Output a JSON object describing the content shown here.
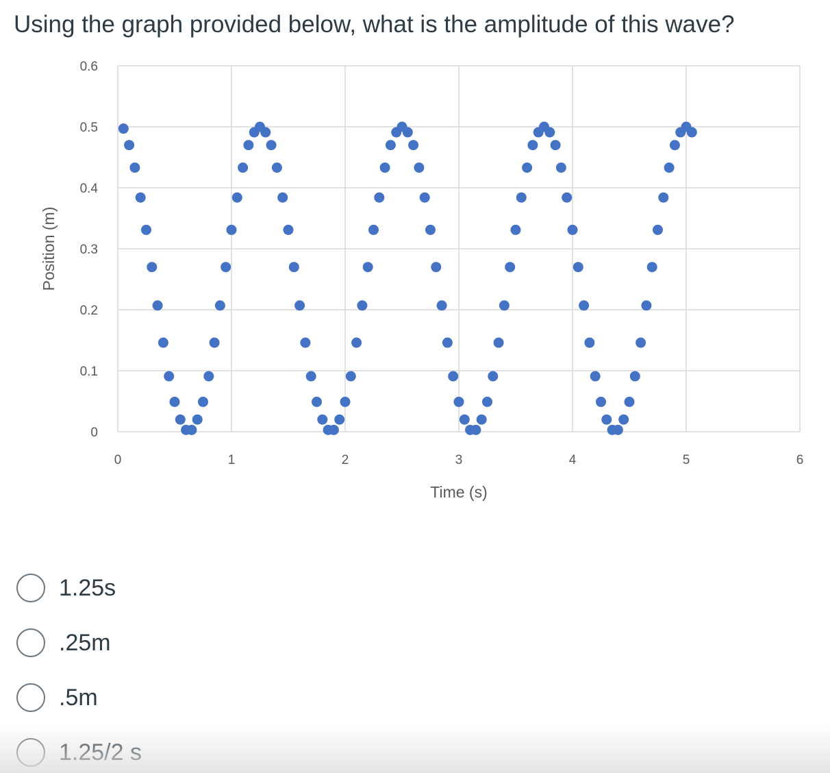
{
  "question": {
    "text": "Using the graph provided below, what is the amplitude of this wave?"
  },
  "answers": [
    {
      "label": "1.25s",
      "selected": false
    },
    {
      "label": ".25m",
      "selected": false
    },
    {
      "label": ".5m",
      "selected": false
    },
    {
      "label": "1.25/2 s",
      "selected": false
    }
  ],
  "colors": {
    "marker": "#4472c4",
    "grid": "#d9d9d9",
    "text": "#2d3b45",
    "tick_text": "#595959"
  },
  "chart_data": {
    "type": "scatter",
    "xlabel": "Time (s)",
    "ylabel": "Position (m)",
    "xlim": [
      0,
      6
    ],
    "ylim": [
      0,
      0.6
    ],
    "x_ticks": [
      "0",
      "1",
      "2",
      "3",
      "4",
      "5",
      "6"
    ],
    "y_ticks": [
      "0",
      "0.1",
      "0.2",
      "0.3",
      "0.4",
      "0.5",
      "0.6"
    ],
    "grid": true,
    "legend": "none",
    "series": [
      {
        "marker_color": "#4472c4",
        "x": [
          0.05,
          0.1,
          0.15,
          0.2,
          0.25,
          0.3,
          0.35,
          0.4,
          0.45,
          0.5,
          0.55,
          0.6,
          0.65,
          0.7,
          0.75,
          0.8,
          0.85,
          0.9,
          0.95,
          1.0,
          1.05,
          1.1,
          1.15,
          1.2,
          1.25,
          1.3,
          1.35,
          1.4,
          1.45,
          1.5,
          1.55,
          1.6,
          1.65,
          1.7,
          1.75,
          1.8,
          1.85,
          1.9,
          1.95,
          2.0,
          2.05,
          2.1,
          2.15,
          2.2,
          2.25,
          2.3,
          2.35,
          2.4,
          2.45,
          2.5,
          2.55,
          2.6,
          2.65,
          2.7,
          2.75,
          2.8,
          2.85,
          2.9,
          2.95,
          3.0,
          3.05,
          3.1,
          3.15,
          3.2,
          3.25,
          3.3,
          3.35,
          3.4,
          3.45,
          3.5,
          3.55,
          3.6,
          3.65,
          3.7,
          3.75,
          3.8,
          3.85,
          3.9,
          3.95,
          4.0,
          4.05,
          4.1,
          4.15,
          4.2,
          4.25,
          4.3,
          4.35,
          4.4,
          4.45,
          4.5,
          4.55,
          4.6,
          4.65,
          4.7,
          4.75,
          4.8,
          4.85,
          4.9,
          4.95,
          5.0,
          5.05
        ],
        "y": [
          0.497,
          0.47,
          0.433,
          0.384,
          0.331,
          0.27,
          0.207,
          0.146,
          0.091,
          0.049,
          0.02,
          0.003,
          0.003,
          0.02,
          0.049,
          0.091,
          0.146,
          0.207,
          0.27,
          0.331,
          0.384,
          0.433,
          0.47,
          0.491,
          0.5,
          0.491,
          0.47,
          0.433,
          0.384,
          0.331,
          0.27,
          0.207,
          0.146,
          0.091,
          0.049,
          0.02,
          0.003,
          0.003,
          0.02,
          0.049,
          0.091,
          0.146,
          0.207,
          0.27,
          0.331,
          0.384,
          0.433,
          0.47,
          0.491,
          0.5,
          0.491,
          0.47,
          0.433,
          0.384,
          0.331,
          0.27,
          0.207,
          0.146,
          0.091,
          0.049,
          0.02,
          0.003,
          0.003,
          0.02,
          0.049,
          0.091,
          0.146,
          0.207,
          0.27,
          0.331,
          0.384,
          0.433,
          0.47,
          0.491,
          0.5,
          0.491,
          0.47,
          0.433,
          0.384,
          0.331,
          0.27,
          0.207,
          0.146,
          0.091,
          0.049,
          0.02,
          0.003,
          0.003,
          0.02,
          0.049,
          0.091,
          0.146,
          0.207,
          0.27,
          0.331,
          0.384,
          0.433,
          0.47,
          0.491,
          0.5,
          0.491
        ]
      }
    ]
  }
}
